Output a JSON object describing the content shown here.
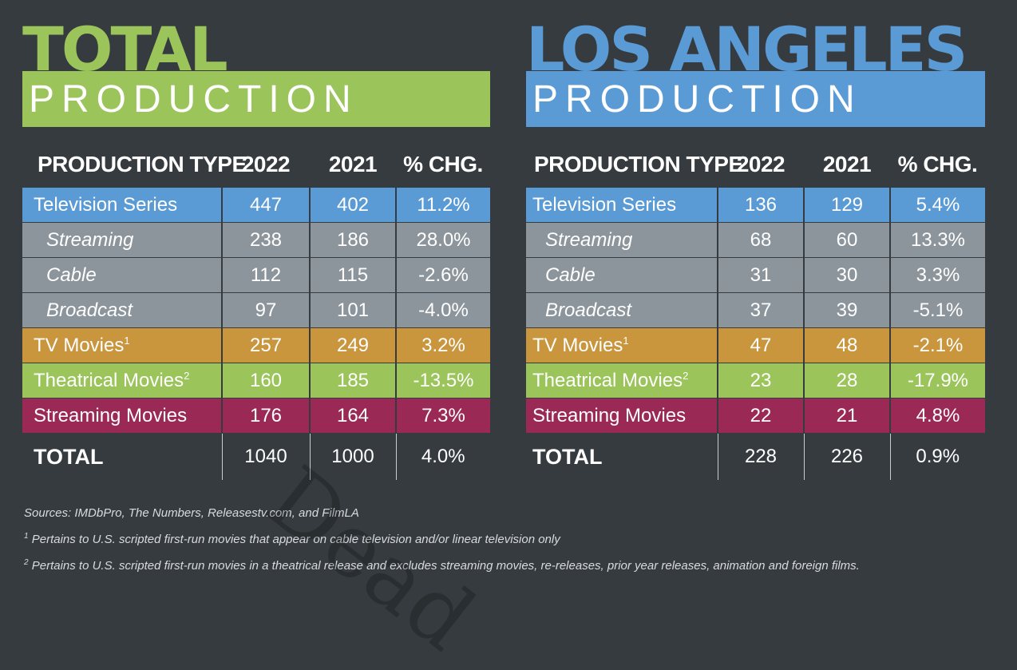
{
  "total": {
    "title": "TOTAL",
    "subtitle": "PRODUCTION",
    "headers": [
      "PRODUCTION TYPE",
      "2022",
      "2021",
      "% CHG."
    ],
    "rows": [
      {
        "type": "Television Series",
        "y2022": "447",
        "y2021": "402",
        "chg": "11.2%"
      },
      {
        "type": "Streaming",
        "y2022": "238",
        "y2021": "186",
        "chg": "28.0%"
      },
      {
        "type": "Cable",
        "y2022": "112",
        "y2021": "115",
        "chg": "-2.6%"
      },
      {
        "type": "Broadcast",
        "y2022": "97",
        "y2021": "101",
        "chg": "-4.0%"
      },
      {
        "type": "TV Movies",
        "note": "1",
        "y2022": "257",
        "y2021": "249",
        "chg": "3.2%"
      },
      {
        "type": "Theatrical Movies",
        "note": "2",
        "y2022": "160",
        "y2021": "185",
        "chg": "-13.5%"
      },
      {
        "type": "Streaming Movies",
        "y2022": "176",
        "y2021": "164",
        "chg": "7.3%"
      }
    ],
    "total": {
      "label": "TOTAL",
      "y2022": "1040",
      "y2021": "1000",
      "chg": "4.0%"
    }
  },
  "la": {
    "title": "LOS ANGELES",
    "subtitle": "PRODUCTION",
    "headers": [
      "PRODUCTION TYPE",
      "2022",
      "2021",
      "% CHG."
    ],
    "rows": [
      {
        "type": "Television Series",
        "y2022": "136",
        "y2021": "129",
        "chg": "5.4%"
      },
      {
        "type": "Streaming",
        "y2022": "68",
        "y2021": "60",
        "chg": "13.3%"
      },
      {
        "type": "Cable",
        "y2022": "31",
        "y2021": "30",
        "chg": "3.3%"
      },
      {
        "type": "Broadcast",
        "y2022": "37",
        "y2021": "39",
        "chg": "-5.1%"
      },
      {
        "type": "TV Movies",
        "note": "1",
        "y2022": "47",
        "y2021": "48",
        "chg": "-2.1%"
      },
      {
        "type": "Theatrical Movies",
        "note": "2",
        "y2022": "23",
        "y2021": "28",
        "chg": "-17.9%"
      },
      {
        "type": "Streaming Movies",
        "y2022": "22",
        "y2021": "21",
        "chg": "4.8%"
      }
    ],
    "total": {
      "label": "TOTAL",
      "y2022": "228",
      "y2021": "226",
      "chg": "0.9%"
    }
  },
  "notes": {
    "sources": "Sources: IMDbPro, The Numbers, Releasestv.com, and FilmLA",
    "note1_mark": "1",
    "note1": " Pertains to U.S. scripted first-run movies that appear on cable television and/or linear television only",
    "note2_mark": "2",
    "note2": " Pertains to U.S. scripted first-run movies in a theatrical release and excludes streaming movies, re-releases, prior year releases, animation and foreign films."
  },
  "watermark": "Dead",
  "colors": {
    "background": "#353b3f",
    "green": "#9bc45a",
    "blue": "#5b9bd5",
    "gray": "#8c959b",
    "gold": "#c9953d",
    "maroon": "#9a2a55"
  }
}
